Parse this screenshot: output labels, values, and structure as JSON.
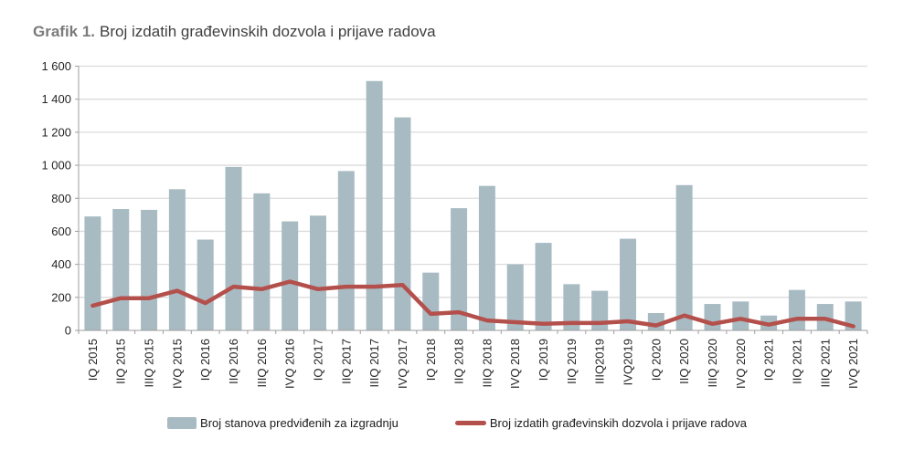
{
  "title": {
    "prefix": "Grafik 1.",
    "text": "Broj izdatih građevinskih dozvola i prijave radova"
  },
  "colors": {
    "bar": "#a8bbc3",
    "line": "#b4504c",
    "grid": "#dcdcdc",
    "axis": "#9e9e9e",
    "tick_text": "#262626"
  },
  "chart_data": {
    "type": "bar+line",
    "categories": [
      "IQ 2015",
      "IIQ 2015",
      "IIIQ 2015",
      "IVQ 2015",
      "IQ 2016",
      "IIQ 2016",
      "IIIQ 2016",
      "IVQ 2016",
      "IQ 2017",
      "IIQ 2017",
      "IIIQ 2017",
      "IVQ 2017",
      "IQ 2018",
      "IIQ 2018",
      "IIIQ 2018",
      "IVQ 2018",
      "IQ 2019",
      "IIQ 2019",
      "IIIQ2019",
      "IVQ2019",
      "IQ 2020",
      "IIQ 2020",
      "IIIQ 2020",
      "IVQ 2020",
      "IQ 2021",
      "IIQ 2021",
      "IIIQ 2021",
      "IVQ 2021"
    ],
    "series": [
      {
        "name": "Broj stanova predviđenih za izgradnju",
        "type": "bar",
        "color": "#a8bbc3",
        "values": [
          690,
          735,
          730,
          855,
          550,
          990,
          830,
          660,
          695,
          965,
          1510,
          1290,
          350,
          740,
          875,
          400,
          530,
          280,
          240,
          555,
          105,
          880,
          160,
          175,
          90,
          245,
          160,
          175
        ]
      },
      {
        "name": "Broj izdatih građevinskih dozvola i prijave radova",
        "type": "line",
        "color": "#b4504c",
        "values": [
          150,
          195,
          195,
          240,
          165,
          265,
          250,
          295,
          250,
          265,
          265,
          275,
          100,
          110,
          60,
          50,
          40,
          45,
          45,
          55,
          30,
          90,
          40,
          70,
          35,
          70,
          70,
          25
        ]
      }
    ],
    "ylim": [
      0,
      1600
    ],
    "ytick_step": 200,
    "ytick_labels": [
      "0",
      "200",
      "400",
      "600",
      "800",
      "1 000",
      "1 200",
      "1 400",
      "1 600"
    ],
    "grid": true,
    "legend_position": "bottom"
  }
}
